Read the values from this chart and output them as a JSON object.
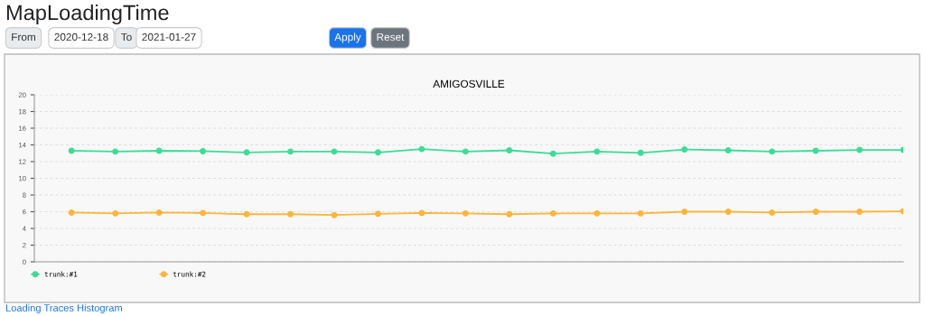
{
  "chart_data": {
    "type": "line",
    "title": "MapLoadingTime",
    "subtitle": "AMIGOSVILLE",
    "annotations": [
      "From",
      "2020-12-18",
      "To",
      "2021-01-27",
      "Apply",
      "Reset",
      "Loading Traces Histogram"
    ],
    "categories": [
      null,
      null,
      null,
      null,
      null,
      null,
      null,
      null,
      null,
      null,
      null,
      null,
      null,
      null,
      null,
      null,
      null,
      null,
      null,
      null
    ],
    "series": [
      {
        "name": "trunk:#1",
        "color": "#3ddc97",
        "values": [
          13.3,
          13.2,
          13.3,
          13.25,
          13.1,
          13.2,
          13.2,
          13.1,
          13.5,
          13.2,
          13.35,
          12.95,
          13.2,
          13.05,
          13.45,
          13.35,
          13.2,
          13.3,
          13.4,
          13.4
        ]
      },
      {
        "name": "trunk:#2",
        "color": "#fdb53c",
        "values": [
          5.9,
          5.8,
          5.9,
          5.85,
          5.7,
          5.7,
          5.6,
          5.75,
          5.85,
          5.8,
          5.7,
          5.8,
          5.8,
          5.8,
          6.0,
          6.0,
          5.9,
          6.0,
          6.0,
          6.05
        ]
      }
    ],
    "ylim": [
      0,
      20
    ],
    "yticks": [
      0,
      2,
      4,
      6,
      8,
      10,
      12,
      14,
      16,
      18,
      20
    ],
    "grid": "y",
    "legend": "bottom left",
    "marker": "circle",
    "line_style": "solid"
  }
}
